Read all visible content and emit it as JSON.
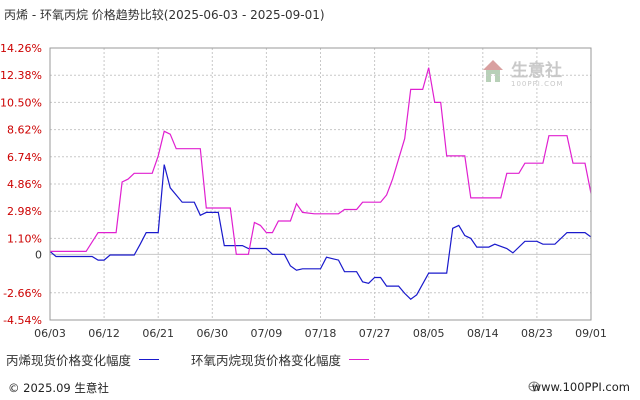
{
  "title": "丙烯 - 环氧丙烷 价格趋势比较(2025-06-03 - 2025-09-01)",
  "watermark": {
    "brand": "生意社",
    "site": "100PPI.COM"
  },
  "legend": {
    "series1": "丙烯现货价格变化幅度",
    "series2": "环氧丙烷现货价格变化幅度"
  },
  "footer": {
    "copyright": "© 2025.09 生意社",
    "site": "www.100PPI.com"
  },
  "colors": {
    "series1": "#1a1acc",
    "series2": "#e020d0",
    "axis_text": "#cc0000",
    "grid": "#c8c8c8"
  },
  "chart_data": {
    "type": "line",
    "title": "丙烯 - 环氧丙烷 价格趋势比较(2025-06-03 - 2025-09-01)",
    "x_range": [
      "2025-06-03",
      "2025-09-01"
    ],
    "x_ticks": [
      "06/03",
      "06/12",
      "06/21",
      "06/30",
      "07/09",
      "07/18",
      "07/27",
      "08/05",
      "08/14",
      "08/23",
      "09/01"
    ],
    "y_ticks": [
      "14.26%",
      "12.38%",
      "10.50%",
      "8.62%",
      "6.74%",
      "4.86%",
      "2.98%",
      "1.10%",
      "0",
      "-2.66%",
      "-4.54%"
    ],
    "y_tick_values": [
      14.26,
      12.38,
      10.5,
      8.62,
      6.74,
      4.86,
      2.98,
      1.1,
      0,
      -2.66,
      -4.54
    ],
    "ylim": [
      -4.54,
      14.26
    ],
    "grid": true,
    "legend_position": "bottom",
    "series": [
      {
        "name": "丙烯现货价格变化幅度",
        "points": [
          [
            "2025-06-03",
            0.2
          ],
          [
            "2025-06-04",
            -0.15
          ],
          [
            "2025-06-06",
            -0.15
          ],
          [
            "2025-06-10",
            -0.15
          ],
          [
            "2025-06-11",
            -0.4
          ],
          [
            "2025-06-12",
            -0.4
          ],
          [
            "2025-06-13",
            -0.05
          ],
          [
            "2025-06-17",
            -0.05
          ],
          [
            "2025-06-18",
            0.7
          ],
          [
            "2025-06-19",
            1.5
          ],
          [
            "2025-06-21",
            1.5
          ],
          [
            "2025-06-22",
            6.2
          ],
          [
            "2025-06-23",
            4.6
          ],
          [
            "2025-06-25",
            3.6
          ],
          [
            "2025-06-27",
            3.6
          ],
          [
            "2025-06-28",
            2.7
          ],
          [
            "2025-06-29",
            2.9
          ],
          [
            "2025-07-01",
            2.9
          ],
          [
            "2025-07-02",
            0.6
          ],
          [
            "2025-07-05",
            0.6
          ],
          [
            "2025-07-06",
            0.4
          ],
          [
            "2025-07-09",
            0.4
          ],
          [
            "2025-07-10",
            0.0
          ],
          [
            "2025-07-12",
            0.0
          ],
          [
            "2025-07-13",
            -0.8
          ],
          [
            "2025-07-14",
            -1.1
          ],
          [
            "2025-07-15",
            -1.0
          ],
          [
            "2025-07-18",
            -1.0
          ],
          [
            "2025-07-19",
            -0.2
          ],
          [
            "2025-07-20",
            -0.3
          ],
          [
            "2025-07-21",
            -0.4
          ],
          [
            "2025-07-22",
            -1.2
          ],
          [
            "2025-07-24",
            -1.2
          ],
          [
            "2025-07-25",
            -1.9
          ],
          [
            "2025-07-26",
            -2.0
          ],
          [
            "2025-07-27",
            -1.6
          ],
          [
            "2025-07-28",
            -1.6
          ],
          [
            "2025-07-29",
            -2.2
          ],
          [
            "2025-07-31",
            -2.2
          ],
          [
            "2025-08-01",
            -2.7
          ],
          [
            "2025-08-02",
            -3.1
          ],
          [
            "2025-08-03",
            -2.8
          ],
          [
            "2025-08-05",
            -1.3
          ],
          [
            "2025-08-08",
            -1.3
          ],
          [
            "2025-08-09",
            1.8
          ],
          [
            "2025-08-10",
            2.0
          ],
          [
            "2025-08-11",
            1.3
          ],
          [
            "2025-08-12",
            1.1
          ],
          [
            "2025-08-13",
            0.5
          ],
          [
            "2025-08-15",
            0.5
          ],
          [
            "2025-08-16",
            0.7
          ],
          [
            "2025-08-18",
            0.4
          ],
          [
            "2025-08-19",
            0.1
          ],
          [
            "2025-08-21",
            0.9
          ],
          [
            "2025-08-23",
            0.9
          ],
          [
            "2025-08-24",
            0.7
          ],
          [
            "2025-08-26",
            0.7
          ],
          [
            "2025-08-28",
            1.5
          ],
          [
            "2025-08-31",
            1.5
          ],
          [
            "2025-09-01",
            1.2
          ]
        ]
      },
      {
        "name": "环氧丙烷现货价格变化幅度",
        "points": [
          [
            "2025-06-03",
            0.2
          ],
          [
            "2025-06-09",
            0.2
          ],
          [
            "2025-06-11",
            1.5
          ],
          [
            "2025-06-13",
            1.5
          ],
          [
            "2025-06-14",
            1.5
          ],
          [
            "2025-06-15",
            5.0
          ],
          [
            "2025-06-16",
            5.2
          ],
          [
            "2025-06-17",
            5.6
          ],
          [
            "2025-06-18",
            5.6
          ],
          [
            "2025-06-19",
            5.6
          ],
          [
            "2025-06-20",
            5.6
          ],
          [
            "2025-06-21",
            6.8
          ],
          [
            "2025-06-22",
            8.5
          ],
          [
            "2025-06-23",
            8.3
          ],
          [
            "2025-06-24",
            7.3
          ],
          [
            "2025-06-28",
            7.3
          ],
          [
            "2025-06-29",
            3.2
          ],
          [
            "2025-07-03",
            3.2
          ],
          [
            "2025-07-04",
            0.0
          ],
          [
            "2025-07-05",
            0.0
          ],
          [
            "2025-07-06",
            0.0
          ],
          [
            "2025-07-07",
            2.2
          ],
          [
            "2025-07-08",
            2.0
          ],
          [
            "2025-07-09",
            1.5
          ],
          [
            "2025-07-10",
            1.5
          ],
          [
            "2025-07-11",
            2.3
          ],
          [
            "2025-07-13",
            2.3
          ],
          [
            "2025-07-14",
            3.5
          ],
          [
            "2025-07-15",
            2.9
          ],
          [
            "2025-07-17",
            2.8
          ],
          [
            "2025-07-21",
            2.8
          ],
          [
            "2025-07-22",
            3.1
          ],
          [
            "2025-07-24",
            3.1
          ],
          [
            "2025-07-25",
            3.6
          ],
          [
            "2025-07-28",
            3.6
          ],
          [
            "2025-07-29",
            4.1
          ],
          [
            "2025-07-30",
            5.2
          ],
          [
            "2025-08-01",
            8.0
          ],
          [
            "2025-08-02",
            11.4
          ],
          [
            "2025-08-03",
            11.4
          ],
          [
            "2025-08-04",
            11.4
          ],
          [
            "2025-08-05",
            12.9
          ],
          [
            "2025-08-06",
            10.5
          ],
          [
            "2025-08-07",
            10.5
          ],
          [
            "2025-08-08",
            6.8
          ],
          [
            "2025-08-11",
            6.8
          ],
          [
            "2025-08-12",
            3.9
          ],
          [
            "2025-08-16",
            3.9
          ],
          [
            "2025-08-17",
            3.9
          ],
          [
            "2025-08-18",
            5.6
          ],
          [
            "2025-08-20",
            5.6
          ],
          [
            "2025-08-21",
            6.3
          ],
          [
            "2025-08-24",
            6.3
          ],
          [
            "2025-08-25",
            8.2
          ],
          [
            "2025-08-28",
            8.2
          ],
          [
            "2025-08-29",
            6.3
          ],
          [
            "2025-08-31",
            6.3
          ],
          [
            "2025-09-01",
            4.2
          ]
        ]
      }
    ]
  }
}
